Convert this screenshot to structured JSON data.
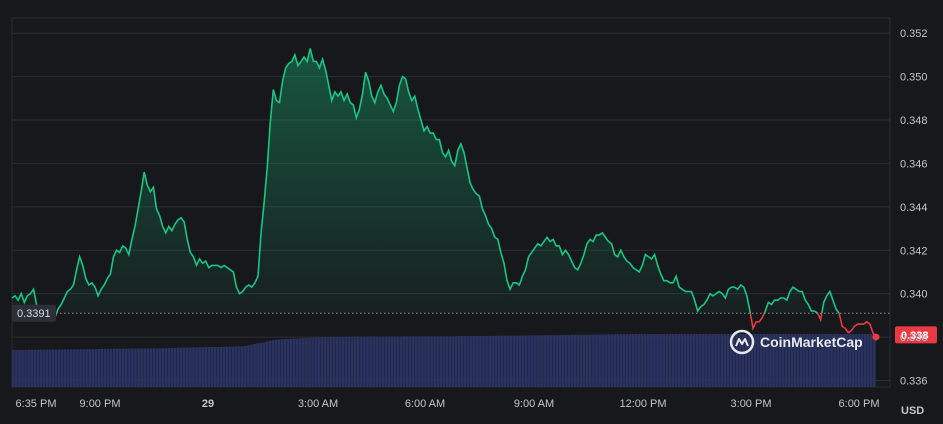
{
  "chart_data": {
    "type": "line",
    "y_ticks": [
      "0.352",
      "0.350",
      "0.348",
      "0.346",
      "0.344",
      "0.342",
      "0.340",
      "0.338",
      "0.336"
    ],
    "x_ticks": [
      "6:35 PM",
      "9:00 PM",
      "29",
      "3:00 AM",
      "6:00 AM",
      "9:00 AM",
      "12:00 PM",
      "3:00 PM",
      "6:00 PM"
    ],
    "unit": "USD",
    "ylim": [
      0.3357,
      0.3527
    ],
    "reference_line": {
      "value": 0.3391,
      "label": "0.3391"
    },
    "last_price": {
      "value": 0.3381,
      "label": "0.338"
    },
    "watermark": "CoinMarketCap",
    "colors": {
      "up": "#16c784",
      "down": "#ea3943",
      "volume": "#2a3260",
      "grid": "#2a2d33"
    },
    "series": [
      {
        "values": [
          0.3398,
          0.3399,
          0.3397,
          0.34,
          0.3396,
          0.3399,
          0.34,
          0.3402,
          0.3395,
          0.339,
          0.3389,
          0.339,
          0.3389,
          0.3391,
          0.3389,
          0.3393,
          0.3395,
          0.3398,
          0.3401,
          0.3402,
          0.3404,
          0.3411,
          0.3417,
          0.3413,
          0.3407,
          0.3404,
          0.3405,
          0.3403,
          0.3399,
          0.3402,
          0.3404,
          0.3407,
          0.3409,
          0.3417,
          0.342,
          0.3419,
          0.3422,
          0.3421,
          0.3418,
          0.3425,
          0.3431,
          0.3439,
          0.3447,
          0.3456,
          0.345,
          0.3447,
          0.3449,
          0.3439,
          0.3436,
          0.3431,
          0.3428,
          0.3431,
          0.3429,
          0.3432,
          0.3434,
          0.3435,
          0.3433,
          0.3425,
          0.3419,
          0.3417,
          0.3413,
          0.3416,
          0.3414,
          0.3415,
          0.3412,
          0.3413,
          0.3413,
          0.3413,
          0.3412,
          0.3413,
          0.3412,
          0.3411,
          0.341,
          0.3403,
          0.34,
          0.3401,
          0.3403,
          0.3404,
          0.3403,
          0.3405,
          0.3408,
          0.3428,
          0.3442,
          0.3458,
          0.3479,
          0.3494,
          0.3489,
          0.3488,
          0.3498,
          0.3504,
          0.3506,
          0.3507,
          0.351,
          0.3505,
          0.3507,
          0.3509,
          0.3507,
          0.3513,
          0.3507,
          0.3507,
          0.3504,
          0.3508,
          0.3503,
          0.3496,
          0.3489,
          0.3493,
          0.3491,
          0.3493,
          0.3489,
          0.3492,
          0.3488,
          0.3487,
          0.3481,
          0.3485,
          0.3492,
          0.3502,
          0.3498,
          0.3491,
          0.3488,
          0.3493,
          0.3496,
          0.3492,
          0.349,
          0.3487,
          0.3484,
          0.3488,
          0.3496,
          0.35,
          0.3499,
          0.3493,
          0.3489,
          0.3491,
          0.3485,
          0.348,
          0.3475,
          0.3477,
          0.3474,
          0.3474,
          0.3471,
          0.3471,
          0.3465,
          0.3463,
          0.3466,
          0.3461,
          0.3459,
          0.3466,
          0.3469,
          0.3465,
          0.3458,
          0.3451,
          0.3448,
          0.3446,
          0.3445,
          0.3439,
          0.3436,
          0.3432,
          0.343,
          0.3426,
          0.3425,
          0.3419,
          0.3414,
          0.3406,
          0.3402,
          0.3405,
          0.3405,
          0.3404,
          0.3408,
          0.3411,
          0.3417,
          0.3419,
          0.3421,
          0.3423,
          0.3422,
          0.3424,
          0.3426,
          0.3424,
          0.3425,
          0.3422,
          0.3422,
          0.3418,
          0.342,
          0.3418,
          0.3415,
          0.3412,
          0.3411,
          0.3414,
          0.3418,
          0.3423,
          0.3425,
          0.3424,
          0.3427,
          0.3427,
          0.3428,
          0.3426,
          0.3424,
          0.3423,
          0.3418,
          0.3417,
          0.342,
          0.3417,
          0.3415,
          0.3414,
          0.3412,
          0.3411,
          0.341,
          0.3413,
          0.3418,
          0.3417,
          0.3416,
          0.3418,
          0.3413,
          0.3409,
          0.3406,
          0.3406,
          0.3405,
          0.3405,
          0.3408,
          0.3403,
          0.3402,
          0.3401,
          0.3401,
          0.3401,
          0.3397,
          0.3392,
          0.3394,
          0.3395,
          0.3397,
          0.34,
          0.3399,
          0.34,
          0.3401,
          0.34,
          0.3398,
          0.3402,
          0.3403,
          0.3403,
          0.3402,
          0.3404,
          0.3403,
          0.3399,
          0.3392,
          0.3384,
          0.3387,
          0.3387,
          0.3389,
          0.3392,
          0.3396,
          0.3395,
          0.3397,
          0.3397,
          0.3398,
          0.3398,
          0.3397,
          0.3401,
          0.3403,
          0.3402,
          0.3401,
          0.3401,
          0.3397,
          0.3395,
          0.3392,
          0.3392,
          0.3391,
          0.3388,
          0.3396,
          0.3399,
          0.3401,
          0.3397,
          0.3393,
          0.3391,
          0.3385,
          0.3384,
          0.3382,
          0.3383,
          0.3385,
          0.3386,
          0.3386,
          0.3386,
          0.3387,
          0.3386,
          0.3382,
          0.338
        ]
      }
    ],
    "volume": [
      0.25,
      0.25,
      0.25,
      0.25,
      0.25,
      0.25,
      0.251,
      0.251,
      0.251,
      0.251,
      0.252,
      0.252,
      0.253,
      0.253,
      0.253,
      0.253,
      0.253,
      0.254,
      0.254,
      0.254,
      0.254,
      0.254,
      0.254,
      0.255,
      0.255,
      0.255,
      0.255,
      0.255,
      0.256,
      0.257,
      0.257,
      0.257,
      0.258,
      0.258,
      0.258,
      0.258,
      0.258,
      0.258,
      0.259,
      0.259,
      0.259,
      0.259,
      0.26,
      0.26,
      0.26,
      0.26,
      0.26,
      0.26,
      0.261,
      0.262,
      0.262,
      0.263,
      0.263,
      0.264,
      0.264,
      0.265,
      0.265,
      0.266,
      0.266,
      0.267,
      0.267,
      0.268,
      0.268,
      0.269,
      0.269,
      0.27,
      0.27,
      0.27,
      0.27,
      0.271,
      0.271,
      0.272,
      0.272,
      0.273,
      0.274,
      0.275,
      0.276,
      0.28,
      0.285,
      0.29,
      0.295,
      0.298,
      0.3,
      0.305,
      0.31,
      0.315,
      0.318,
      0.32,
      0.322,
      0.323,
      0.324,
      0.325,
      0.326,
      0.327,
      0.328,
      0.329,
      0.33,
      0.331,
      0.332,
      0.333,
      0.334,
      0.335,
      0.336,
      0.336,
      0.337,
      0.337,
      0.338,
      0.338,
      0.338,
      0.339,
      0.339,
      0.339,
      0.339,
      0.34,
      0.34,
      0.34,
      0.34,
      0.34,
      0.34,
      0.34,
      0.34,
      0.34,
      0.34,
      0.34,
      0.34,
      0.34,
      0.34,
      0.34,
      0.341,
      0.341,
      0.341,
      0.341,
      0.341,
      0.341,
      0.341,
      0.342,
      0.342,
      0.342,
      0.342,
      0.342,
      0.342,
      0.342,
      0.342,
      0.342,
      0.342,
      0.343,
      0.343,
      0.343,
      0.343,
      0.343,
      0.344,
      0.344,
      0.344,
      0.344,
      0.344,
      0.344,
      0.345,
      0.345,
      0.345,
      0.346,
      0.346,
      0.346,
      0.346,
      0.347,
      0.347,
      0.347,
      0.347,
      0.347,
      0.348,
      0.348,
      0.348,
      0.349,
      0.349,
      0.349,
      0.349,
      0.35,
      0.35,
      0.35,
      0.35,
      0.35,
      0.351,
      0.351,
      0.351,
      0.352,
      0.352,
      0.352,
      0.352,
      0.353,
      0.353,
      0.353,
      0.353,
      0.353,
      0.354,
      0.354,
      0.354,
      0.355,
      0.355,
      0.355,
      0.356,
      0.356,
      0.356,
      0.356,
      0.356,
      0.357,
      0.357,
      0.357,
      0.357,
      0.357,
      0.357,
      0.357,
      0.357,
      0.357,
      0.357,
      0.357,
      0.357,
      0.357,
      0.357,
      0.357,
      0.357,
      0.357,
      0.357,
      0.357,
      0.357,
      0.357,
      0.357,
      0.357,
      0.357,
      0.357,
      0.357,
      0.357,
      0.357,
      0.357,
      0.357,
      0.357,
      0.357,
      0.357,
      0.357,
      0.357,
      0.357,
      0.357,
      0.357,
      0.357,
      0.357,
      0.357,
      0.357,
      0.357,
      0.357,
      0.357,
      0.357,
      0.357,
      0.357,
      0.357,
      0.357,
      0.357,
      0.357,
      0.357,
      0.357,
      0.357,
      0.357,
      0.357,
      0.357,
      0.357,
      0.357,
      0.357,
      0.357,
      0.357,
      0.357,
      0.357,
      0.357,
      0.357,
      0.357,
      0.357,
      0.357,
      0.357,
      0.357,
      0.357,
      0.357,
      0.357,
      0.357,
      0.357,
      0.357,
      0.357,
      0.357
    ]
  }
}
